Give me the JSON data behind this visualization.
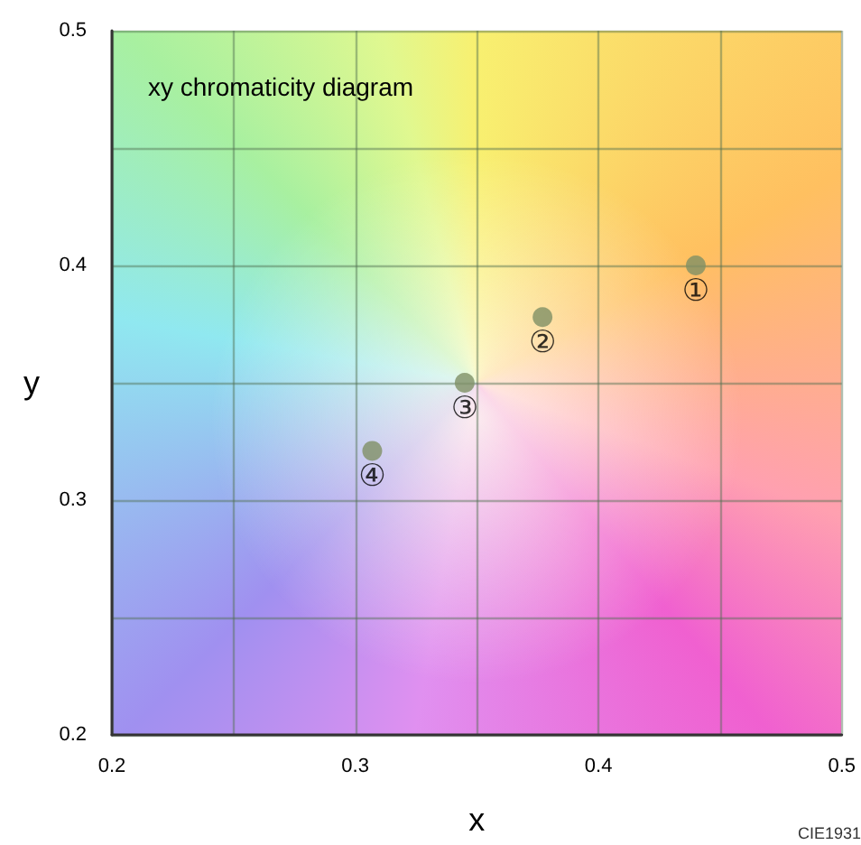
{
  "chart_data": {
    "type": "scatter",
    "title": "xy chromaticity diagram",
    "xlabel": "x",
    "ylabel": "y",
    "x": [
      0.44,
      0.377,
      0.345,
      0.307
    ],
    "series": [
      {
        "color": "#7f9065",
        "values": [
          0.4,
          0.378,
          0.35,
          0.321
        ]
      }
    ],
    "xlim": [
      0.2,
      0.5
    ],
    "ylim": [
      0.2,
      0.5
    ],
    "xticks": [
      0.2,
      {
        "value": 0.25,
        "label": null
      },
      0.3,
      {
        "value": 0.35,
        "label": null
      },
      0.4,
      {
        "value": 0.45,
        "label": null
      },
      0.5
    ],
    "yticks": [
      0.2,
      {
        "value": 0.25,
        "label": null
      },
      0.3,
      {
        "value": 0.35,
        "label": null
      },
      0.4,
      {
        "value": 0.45,
        "label": null
      },
      0.5
    ],
    "grid": true,
    "marker": "circle",
    "annotations": [
      {
        "text": "①",
        "x": 0.44,
        "y": 0.4
      },
      {
        "text": "②",
        "x": 0.377,
        "y": 0.378
      },
      {
        "text": "③",
        "x": 0.345,
        "y": 0.35
      },
      {
        "text": "④",
        "x": 0.307,
        "y": 0.321
      },
      "CIE1931"
    ]
  }
}
